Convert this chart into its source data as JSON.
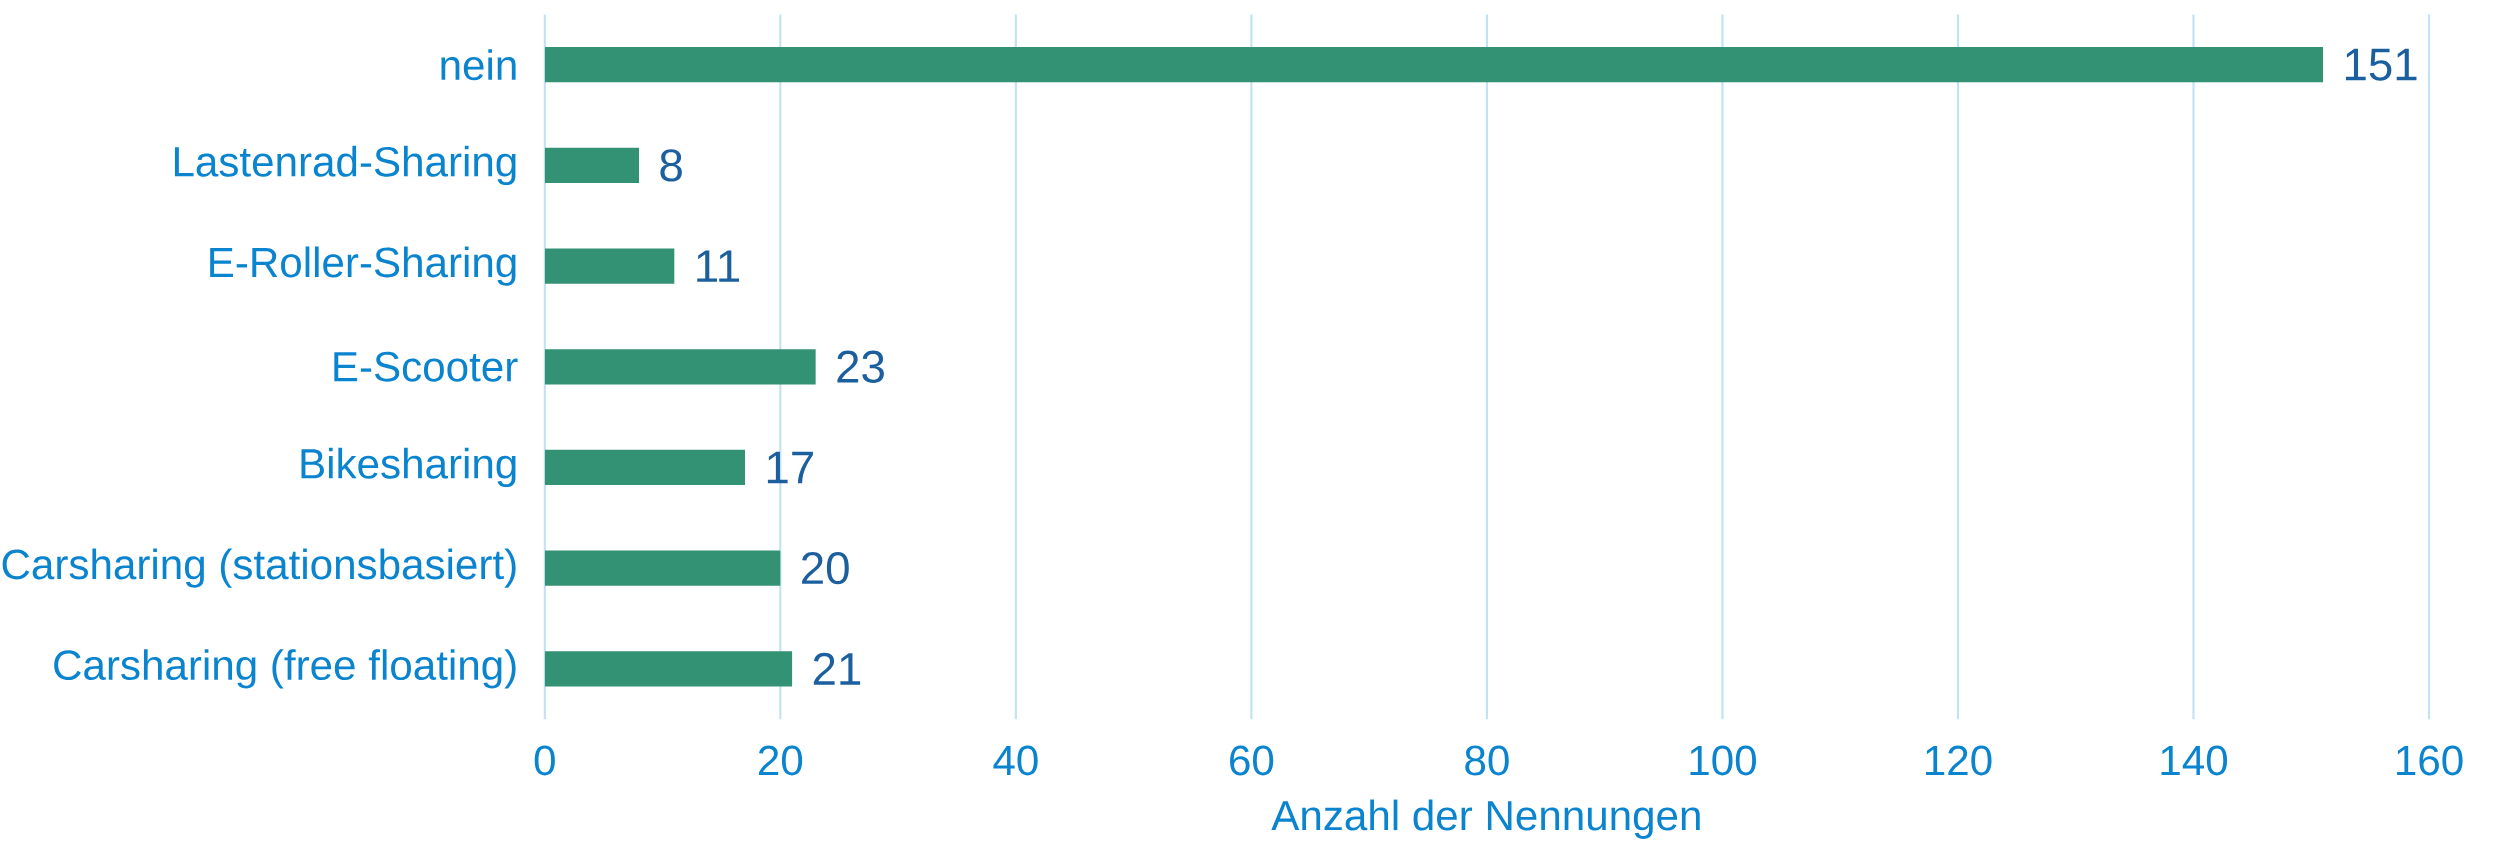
{
  "chart_data": {
    "type": "bar",
    "orientation": "horizontal",
    "xlabel": "Anzahl der Nennungen",
    "categories": [
      "nein",
      "Lastenrad-Sharing",
      "E-Roller-Sharing",
      "E-Scooter",
      "Bikesharing",
      "Carsharing (stationsbasiert)",
      "Carsharing (free floating)"
    ],
    "values": [
      151,
      8,
      11,
      23,
      17,
      20,
      21
    ],
    "color": "#339174",
    "xlim": [
      0,
      160
    ],
    "xticks": [
      0,
      20,
      40,
      60,
      80,
      100,
      120,
      140,
      160
    ],
    "grid": "x",
    "data_labels": true
  }
}
